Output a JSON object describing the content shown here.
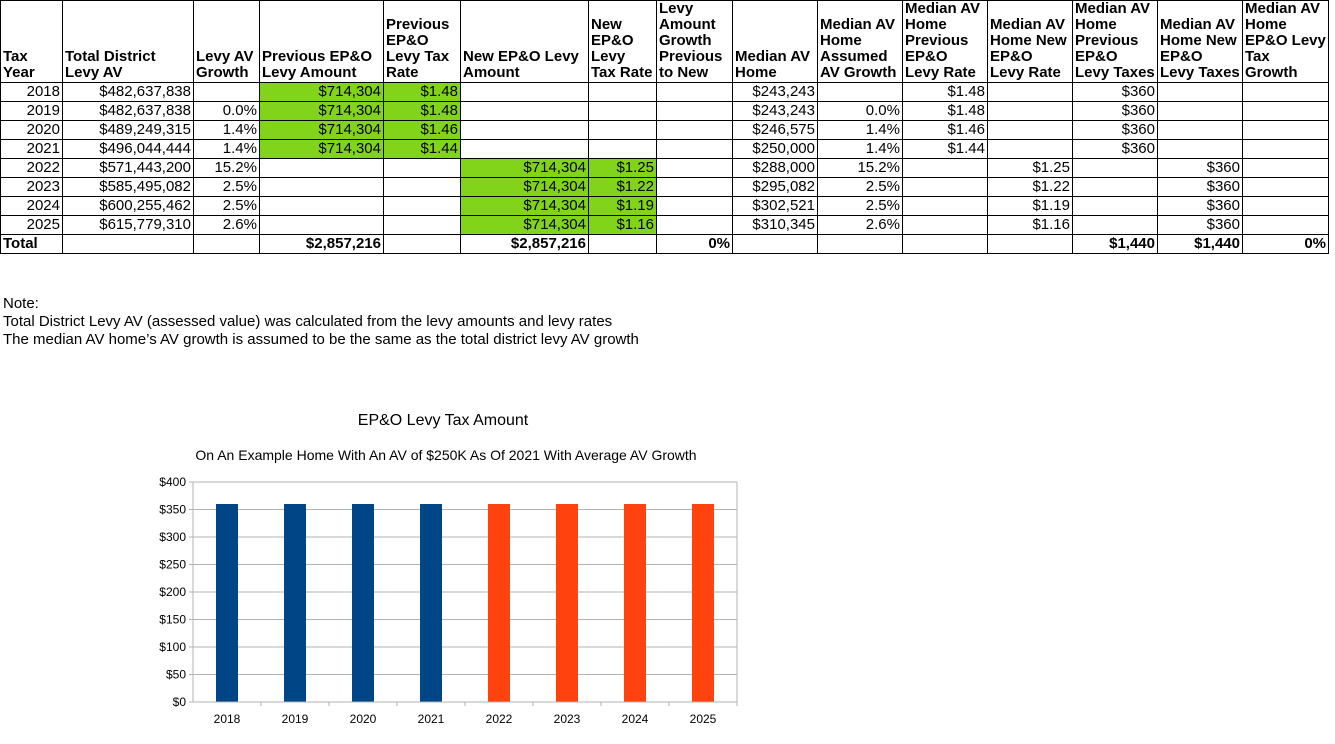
{
  "table": {
    "headers": [
      "Tax Year",
      "Total District Levy AV",
      "Levy AV Growth",
      "Previous EP&O Levy Amount",
      "Previous EP&O Levy Tax Rate",
      "New EP&O Levy Amount",
      "New EP&O Levy Tax Rate",
      "Levy Amount Growth Previous to New",
      "Median AV Home",
      "Median AV Home Assumed AV Growth",
      "Median AV Home Previous EP&O Levy Rate",
      "Median AV Home New EP&O Levy Rate",
      "Median AV Home Previous EP&O Levy Taxes",
      "Median AV Home New EP&O Levy Taxes",
      "Median AV Home EP&O Levy Tax Growth"
    ],
    "rows": [
      [
        "2018",
        "$482,637,838",
        "",
        "$714,304",
        "$1.48",
        "",
        "",
        "",
        "$243,243",
        "",
        "$1.48",
        "",
        "$360",
        "",
        ""
      ],
      [
        "2019",
        "$482,637,838",
        "0.0%",
        "$714,304",
        "$1.48",
        "",
        "",
        "",
        "$243,243",
        "0.0%",
        "$1.48",
        "",
        "$360",
        "",
        ""
      ],
      [
        "2020",
        "$489,249,315",
        "1.4%",
        "$714,304",
        "$1.46",
        "",
        "",
        "",
        "$246,575",
        "1.4%",
        "$1.46",
        "",
        "$360",
        "",
        ""
      ],
      [
        "2021",
        "$496,044,444",
        "1.4%",
        "$714,304",
        "$1.44",
        "",
        "",
        "",
        "$250,000",
        "1.4%",
        "$1.44",
        "",
        "$360",
        "",
        ""
      ],
      [
        "2022",
        "$571,443,200",
        "15.2%",
        "",
        "",
        "$714,304",
        "$1.25",
        "",
        "$288,000",
        "15.2%",
        "",
        "$1.25",
        "",
        "$360",
        ""
      ],
      [
        "2023",
        "$585,495,082",
        "2.5%",
        "",
        "",
        "$714,304",
        "$1.22",
        "",
        "$295,082",
        "2.5%",
        "",
        "$1.22",
        "",
        "$360",
        ""
      ],
      [
        "2024",
        "$600,255,462",
        "2.5%",
        "",
        "",
        "$714,304",
        "$1.19",
        "",
        "$302,521",
        "2.5%",
        "",
        "$1.19",
        "",
        "$360",
        ""
      ],
      [
        "2025",
        "$615,779,310",
        "2.6%",
        "",
        "",
        "$714,304",
        "$1.16",
        "",
        "$310,345",
        "2.6%",
        "",
        "$1.16",
        "",
        "$360",
        ""
      ]
    ],
    "total_row": [
      "Total",
      "",
      "",
      "$2,857,216",
      "",
      "$2,857,216",
      "",
      "0%",
      "",
      "",
      "",
      "",
      "$1,440",
      "$1,440",
      "0%"
    ],
    "highlight_color": "#81d41a"
  },
  "notes": {
    "heading": "Note:",
    "line1": "Total District Levy AV (assessed value) was calculated from the levy amounts and levy rates",
    "line2": "The median AV home’s AV growth is assumed to be the same as the total district levy AV growth"
  },
  "chart_data": {
    "type": "bar",
    "title": "EP&O Levy Tax Amount",
    "subtitle": "On An Example Home With An AV of $250K As Of 2021 With Average AV Growth",
    "categories": [
      "2018",
      "2019",
      "2020",
      "2021",
      "2022",
      "2023",
      "2024",
      "2025"
    ],
    "values": [
      360,
      360,
      360,
      360,
      360,
      360,
      360,
      360
    ],
    "bar_colors": [
      "#004586",
      "#004586",
      "#004586",
      "#004586",
      "#ff420e",
      "#ff420e",
      "#ff420e",
      "#ff420e"
    ],
    "ylim": [
      0,
      400
    ],
    "yticks": [
      "$0",
      "$50",
      "$100",
      "$150",
      "$200",
      "$250",
      "$300",
      "$350",
      "$400"
    ],
    "grid": true,
    "xlabel": "",
    "ylabel": ""
  }
}
